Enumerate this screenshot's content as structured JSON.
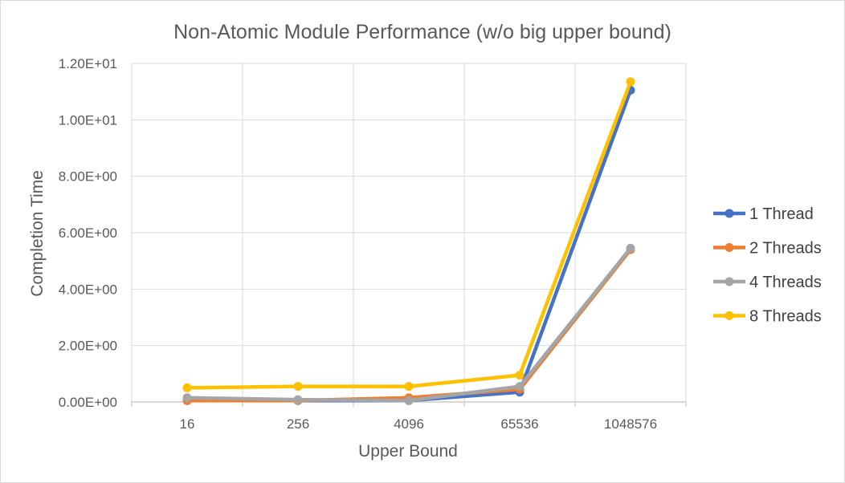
{
  "chart_data": {
    "type": "line",
    "title": "Non-Atomic Module Performance (w/o big upper bound)",
    "xlabel": "Upper Bound",
    "ylabel": "Completion Time",
    "categories": [
      "16",
      "256",
      "4096",
      "65536",
      "1048576"
    ],
    "y_ticks": [
      "0.00E+00",
      "2.00E+00",
      "4.00E+00",
      "6.00E+00",
      "8.00E+00",
      "1.00E+01",
      "1.20E+01"
    ],
    "ylim": [
      0,
      12
    ],
    "grid": true,
    "legend_position": "right",
    "series": [
      {
        "name": "1 Thread",
        "color": "#4472C4",
        "values": [
          0.05,
          0.05,
          0.05,
          0.35,
          11.05
        ]
      },
      {
        "name": "2 Threads",
        "color": "#ED7D31",
        "values": [
          0.05,
          0.05,
          0.15,
          0.45,
          5.4
        ]
      },
      {
        "name": "4 Threads",
        "color": "#A5A5A5",
        "values": [
          0.15,
          0.08,
          0.05,
          0.55,
          5.45
        ]
      },
      {
        "name": "8 Threads",
        "color": "#FFC000",
        "values": [
          0.5,
          0.55,
          0.55,
          0.95,
          11.35
        ]
      }
    ]
  }
}
